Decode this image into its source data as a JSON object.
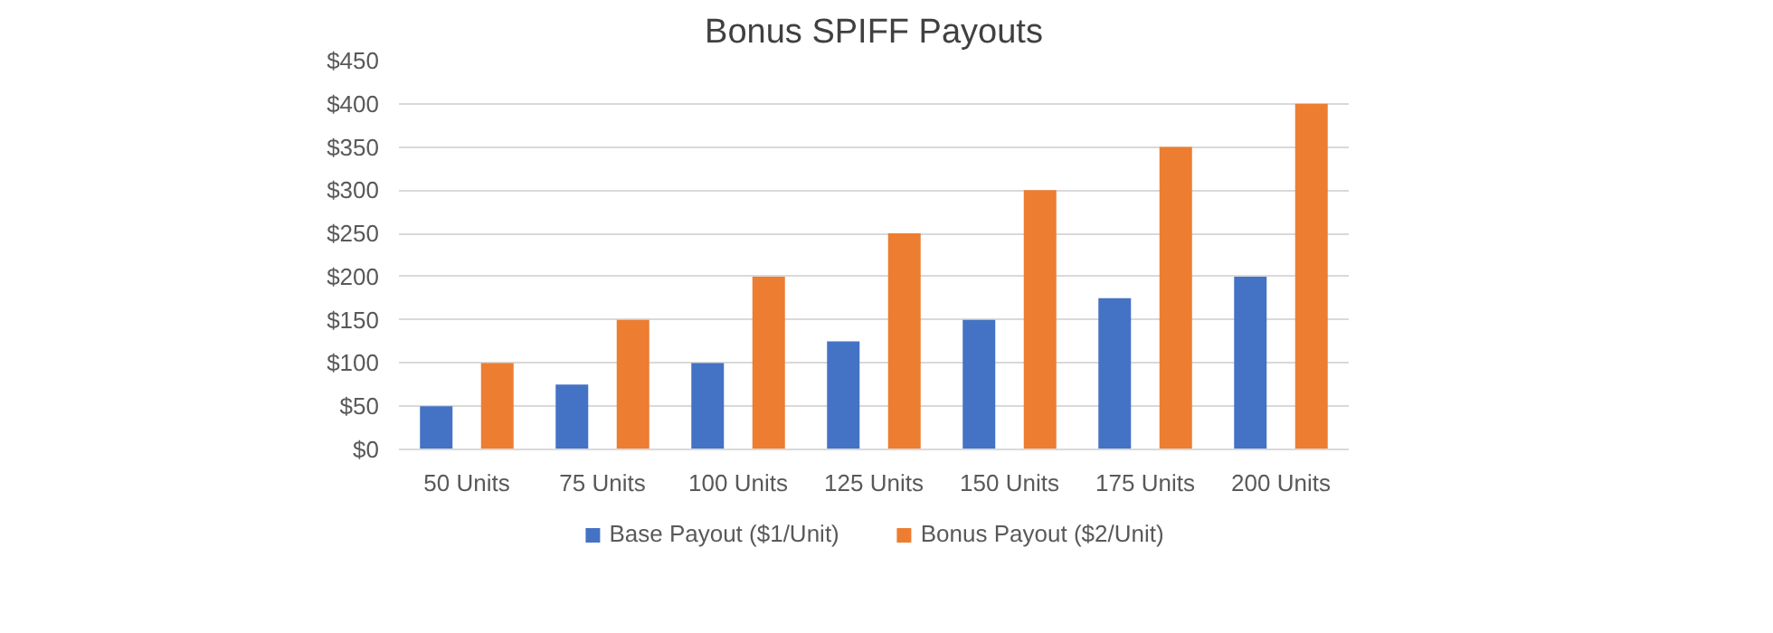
{
  "chart_data": {
    "type": "bar",
    "title": "Bonus SPIFF Payouts",
    "categories": [
      "50 Units",
      "75 Units",
      "100 Units",
      "125 Units",
      "150 Units",
      "175 Units",
      "200 Units"
    ],
    "series": [
      {
        "name": "Base Payout ($1/Unit)",
        "color": "#4472c4",
        "values": [
          50,
          75,
          100,
          125,
          150,
          175,
          200
        ]
      },
      {
        "name": "Bonus Payout ($2/Unit)",
        "color": "#ed7d31",
        "values": [
          100,
          150,
          200,
          250,
          300,
          350,
          400
        ]
      }
    ],
    "ylim": [
      0,
      450
    ],
    "yticks": [
      {
        "value": 0,
        "label": "$0"
      },
      {
        "value": 50,
        "label": "$50"
      },
      {
        "value": 100,
        "label": "$100"
      },
      {
        "value": 150,
        "label": "$150"
      },
      {
        "value": 200,
        "label": "$200"
      },
      {
        "value": 250,
        "label": "$250"
      },
      {
        "value": 300,
        "label": "$300"
      },
      {
        "value": 350,
        "label": "$350"
      },
      {
        "value": 400,
        "label": "$400"
      },
      {
        "value": 450,
        "label": "$450"
      }
    ],
    "grid": "y",
    "legend": "bottom"
  }
}
